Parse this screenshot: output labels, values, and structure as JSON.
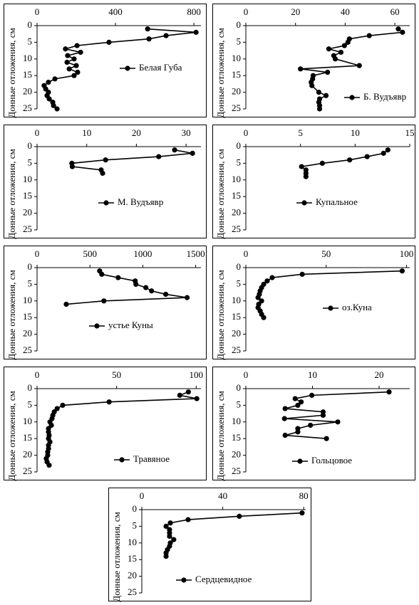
{
  "chart_data": [
    {
      "type": "line",
      "ylabel": "Донные отложения, см",
      "xlim": [
        0,
        836
      ],
      "xticks": [
        0,
        400,
        800
      ],
      "ylim": [
        0,
        25
      ],
      "yticks": [
        0,
        5,
        10,
        15,
        20,
        25
      ],
      "series": [
        {
          "name": "Белая Губа",
          "color": "#000000",
          "x": [
            564,
            811,
            658,
            571,
            367,
            204,
            145,
            222,
            156,
            189,
            153,
            200,
            164,
            207,
            189,
            91,
            58,
            36,
            44,
            58,
            51,
            62,
            80,
            84,
            102
          ],
          "values": [
            1,
            2,
            3,
            4,
            5,
            6,
            7,
            8,
            9,
            10,
            11,
            12,
            13,
            14,
            15,
            16,
            17,
            18,
            19,
            20,
            21,
            22,
            23,
            24,
            25
          ]
        }
      ]
    },
    {
      "type": "line",
      "ylabel": "Донные отложения, см",
      "xlim": [
        0,
        66
      ],
      "xticks": [
        0,
        20,
        40,
        60
      ],
      "ylim": [
        0,
        25
      ],
      "yticks": [
        0,
        5,
        10,
        15,
        20,
        25
      ],
      "series": [
        {
          "name": "Б. Вудъявр",
          "color": "#000000",
          "x": [
            61.4,
            63.1,
            49.7,
            41.7,
            41.1,
            39.7,
            33.4,
            38.3,
            35.4,
            36,
            45.7,
            22,
            32.9,
            27.1,
            26.9,
            26.3,
            26.6,
            29.4,
            32.3,
            29.7,
            29.4,
            29.7,
            29.7
          ],
          "values": [
            1,
            2,
            3,
            4,
            5,
            6,
            7,
            8,
            9,
            10,
            12,
            13,
            14,
            15,
            16,
            17,
            18,
            20,
            21,
            22,
            23,
            24,
            25
          ]
        }
      ]
    },
    {
      "type": "line",
      "ylabel": "Донные отложения, см",
      "xlim": [
        0,
        33
      ],
      "xticks": [
        0,
        10,
        20,
        30
      ],
      "ylim": [
        0,
        25
      ],
      "yticks": [
        0,
        5,
        10,
        15,
        20,
        25
      ],
      "series": [
        {
          "name": "М. Вудъявр",
          "color": "#000000",
          "x": [
            27.7,
            31.3,
            24.5,
            13.8,
            7,
            7.1,
            12.9,
            13.2
          ],
          "values": [
            1,
            2,
            3,
            4,
            5,
            6,
            7,
            8
          ]
        }
      ]
    },
    {
      "type": "line",
      "ylabel": "Донные отложения, см",
      "xlim": [
        0,
        15
      ],
      "xticks": [
        0,
        5,
        10,
        15
      ],
      "ylim": [
        0,
        25
      ],
      "yticks": [
        0,
        5,
        10,
        15,
        20,
        25
      ],
      "series": [
        {
          "name": "Купальное",
          "color": "#000000",
          "x": [
            13,
            12.6,
            11.1,
            9.5,
            7,
            5.1,
            5.5,
            5.5,
            5.5
          ],
          "values": [
            1,
            2,
            3,
            4,
            5,
            6,
            7,
            8,
            9
          ]
        }
      ]
    },
    {
      "type": "line",
      "ylabel": "Донные отложения, см",
      "xlim": [
        0,
        1550
      ],
      "xticks": [
        0,
        500,
        1000,
        1500
      ],
      "ylim": [
        0,
        25
      ],
      "yticks": [
        0,
        5,
        10,
        15,
        20,
        25
      ],
      "series": [
        {
          "name": "устье Куны",
          "color": "#000000",
          "x": [
            592,
            612,
            767,
            928,
            935,
            1029,
            1083,
            1217,
            1419,
            632,
            276
          ],
          "values": [
            1,
            2,
            3,
            4,
            5,
            6,
            7,
            8,
            9,
            10,
            11
          ]
        }
      ]
    },
    {
      "type": "line",
      "ylabel": "Донные отложения, см",
      "xlim": [
        0,
        102
      ],
      "xticks": [
        0,
        50,
        100
      ],
      "ylim": [
        0,
        25
      ],
      "yticks": [
        0,
        5,
        10,
        15,
        20,
        25
      ],
      "series": [
        {
          "name": "оз.Куна",
          "color": "#000000",
          "x": [
            97.3,
            35.1,
            16.4,
            13.3,
            11.1,
            9.8,
            8.9,
            8.4,
            7.6,
            9.8,
            8,
            7.6,
            8.9,
            9.8,
            11.1
          ],
          "values": [
            1,
            2,
            3,
            4,
            5,
            6,
            7,
            8,
            9,
            10,
            11,
            12,
            13,
            14,
            15
          ]
        }
      ]
    },
    {
      "type": "line",
      "ylabel": "Донные отложения, см",
      "xlim": [
        0,
        103
      ],
      "xticks": [
        0,
        50,
        100
      ],
      "ylim": [
        0,
        25
      ],
      "yticks": [
        0,
        5,
        10,
        15,
        20,
        25
      ],
      "series": [
        {
          "name": "Травяное",
          "color": "#000000",
          "x": [
            95.1,
            89.7,
            100.4,
            45.3,
            16.1,
            12.6,
            10.8,
            9.9,
            9.4,
            8.1,
            9,
            7.2,
            7.2,
            7.6,
            7.2,
            8.1,
            7.2,
            7.2,
            6.7,
            6.7,
            5.8,
            6.3,
            7.6
          ],
          "values": [
            1,
            2,
            3,
            4,
            5,
            6,
            7,
            8,
            9,
            10,
            11,
            12,
            13,
            14,
            15,
            16,
            17,
            18,
            19,
            20,
            21,
            22,
            23
          ]
        }
      ]
    },
    {
      "type": "line",
      "ylabel": "Донные отложения, см",
      "xlim": [
        0,
        24.6
      ],
      "xticks": [
        0,
        10,
        20
      ],
      "ylim": [
        0,
        25
      ],
      "yticks": [
        0,
        5,
        10,
        15,
        20,
        25
      ],
      "series": [
        {
          "name": "Гольцовое",
          "color": "#000000",
          "x": [
            21.5,
            9.9,
            7.4,
            8.3,
            7.8,
            5.9,
            11.6,
            11.6,
            5.8,
            13.8,
            9.7,
            7.8,
            7.8,
            5.9,
            12.1
          ],
          "values": [
            1,
            2,
            3,
            4,
            5,
            6,
            7,
            8,
            9,
            10,
            11,
            12,
            13,
            14,
            15
          ]
        }
      ]
    },
    {
      "type": "line",
      "ylabel": "Донные отложения, см",
      "xlim": [
        0,
        81
      ],
      "xticks": [
        0,
        40,
        80
      ],
      "ylim": [
        0,
        25
      ],
      "yticks": [
        0,
        5,
        10,
        15,
        20,
        25
      ],
      "series": [
        {
          "name": "Сердцевидное",
          "color": "#000000",
          "x": [
            79.2,
            48.2,
            22.9,
            14.1,
            12,
            13.7,
            13.7,
            13.7,
            15.8,
            14.1,
            13.7,
            12.7,
            12,
            12
          ],
          "values": [
            1,
            2,
            3,
            4,
            5,
            6,
            7,
            8,
            9,
            10,
            11,
            12,
            13,
            14
          ]
        }
      ]
    }
  ]
}
